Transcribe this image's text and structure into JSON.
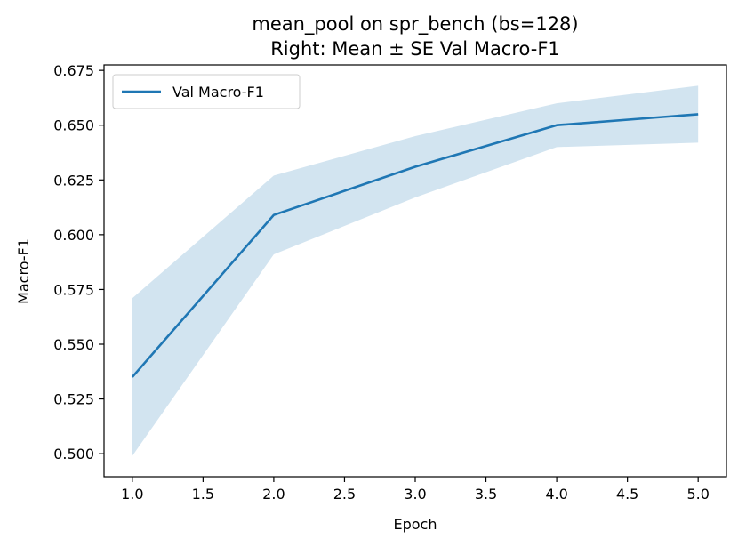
{
  "chart_data": {
    "type": "line",
    "title": "mean_pool on spr_bench (bs=128)",
    "subtitle": "Right: Mean ± SE Val Macro-F1",
    "xlabel": "Epoch",
    "ylabel": "Macro-F1",
    "xlim": [
      0.8,
      5.2
    ],
    "ylim": [
      0.4895,
      0.6775
    ],
    "x_ticks": [
      "1.0",
      "1.5",
      "2.0",
      "2.5",
      "3.0",
      "3.5",
      "4.0",
      "4.5",
      "5.0"
    ],
    "y_ticks": [
      "0.500",
      "0.525",
      "0.550",
      "0.575",
      "0.600",
      "0.625",
      "0.650",
      "0.675"
    ],
    "grid": false,
    "legend_position": "upper-left",
    "series": [
      {
        "name": "Val Macro-F1",
        "color": "#1f77b4",
        "band_color": "#1f77b4",
        "x": [
          1,
          2,
          3,
          4,
          5
        ],
        "y": [
          0.535,
          0.609,
          0.631,
          0.65,
          0.655
        ],
        "lower": [
          0.499,
          0.591,
          0.617,
          0.64,
          0.642
        ],
        "upper": [
          0.571,
          0.627,
          0.645,
          0.66,
          0.668
        ]
      }
    ]
  }
}
